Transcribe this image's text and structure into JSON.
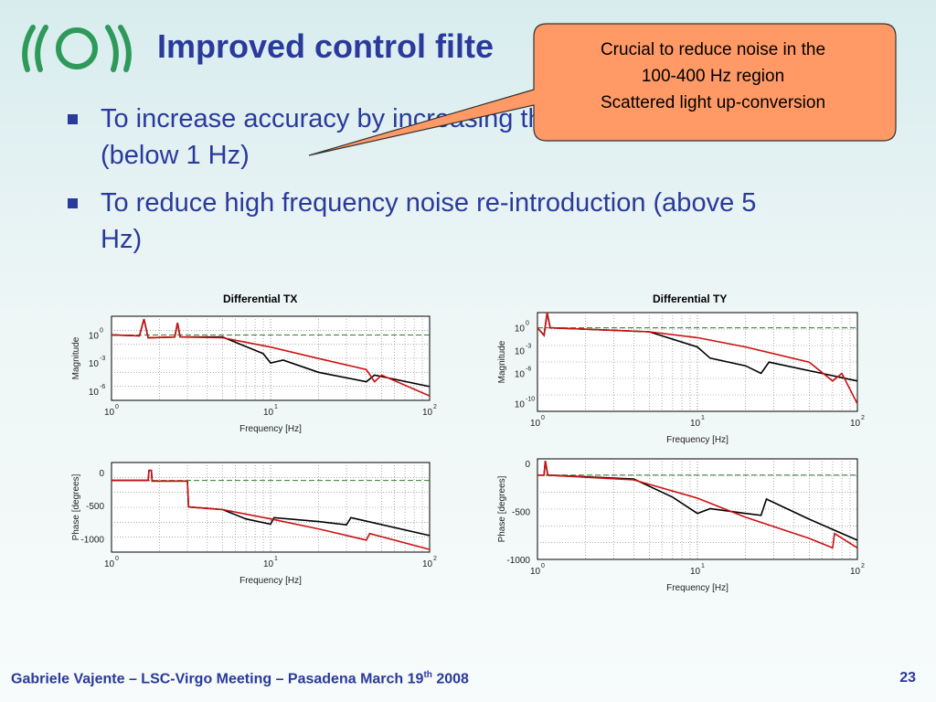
{
  "slide": {
    "title": "Improved control filte",
    "bullets": [
      {
        "line1": "To increase accuracy by increasing the gain at low frequencies",
        "line2": "(below 1 Hz)"
      },
      {
        "line1": "To reduce high frequency noise re-introduction (above 5",
        "line2": "Hz)"
      }
    ],
    "callout": [
      "Crucial to reduce noise in the",
      "100-400 Hz region",
      "Scattered light up-conversion"
    ],
    "footer": {
      "text": "Gabriele Vajente – LSC-Virgo Meeting – Pasadena March 19",
      "sup": "th",
      "year": " 2008"
    },
    "page_number": "23"
  },
  "colors": {
    "title": "#2a3a9c",
    "callout_fill": "#ff9966",
    "callout_border": "#333333",
    "old_filter": "#000000",
    "new_filter": "#cc1111",
    "reference_line": "#2e7d2e",
    "logo": "#2e9a5a"
  },
  "chart_data": [
    {
      "type": "line",
      "title": "Differential TX",
      "subplot": "magnitude",
      "xlabel": "Frequency [Hz]",
      "ylabel": "Magnitude",
      "xscale": "log",
      "yscale": "log",
      "xlim": [
        1,
        100
      ],
      "ylim": [
        1e-07,
        100
      ],
      "xticks": [
        "10^0",
        "10^1",
        "10^2"
      ],
      "yticks": [
        "10^0",
        "10^-3",
        "10^-6"
      ],
      "grid": true,
      "series": [
        {
          "color": "black",
          "points": [
            [
              1,
              1
            ],
            [
              1.5,
              0.8
            ],
            [
              1.6,
              50
            ],
            [
              1.7,
              0.5
            ],
            [
              2.5,
              0.6
            ],
            [
              2.6,
              20
            ],
            [
              2.7,
              0.6
            ],
            [
              5,
              0.6
            ],
            [
              9,
              0.01
            ],
            [
              10,
              0.001
            ],
            [
              12,
              0.002
            ],
            [
              20,
              0.0001
            ],
            [
              40,
              1e-05
            ],
            [
              45,
              5e-05
            ],
            [
              100,
              3e-06
            ]
          ]
        },
        {
          "color": "red",
          "points": [
            [
              1,
              1
            ],
            [
              1.5,
              0.8
            ],
            [
              1.6,
              50
            ],
            [
              1.7,
              0.5
            ],
            [
              2.5,
              0.6
            ],
            [
              2.6,
              20
            ],
            [
              2.7,
              0.6
            ],
            [
              5,
              0.5
            ],
            [
              10,
              0.05
            ],
            [
              20,
              0.003
            ],
            [
              40,
              0.0002
            ],
            [
              45,
              1e-05
            ],
            [
              50,
              5e-05
            ],
            [
              100,
              3e-07
            ]
          ]
        }
      ]
    },
    {
      "type": "line",
      "title": "Differential TY",
      "subplot": "magnitude",
      "xlabel": "Frequency [Hz]",
      "ylabel": "Magnitude",
      "xscale": "log",
      "yscale": "log",
      "xlim": [
        1,
        100
      ],
      "ylim": [
        1e-11,
        100
      ],
      "xticks": [
        "10^0",
        "10^1",
        "10^2"
      ],
      "yticks": [
        "10^0",
        "10^-3",
        "10^-6",
        "10^-10"
      ],
      "grid": true,
      "series": [
        {
          "color": "black",
          "points": [
            [
              1,
              1
            ],
            [
              1.1,
              0.1
            ],
            [
              1.15,
              100
            ],
            [
              1.2,
              1
            ],
            [
              5,
              0.3
            ],
            [
              10,
              0.003
            ],
            [
              12,
              0.0001
            ],
            [
              20,
              1e-05
            ],
            [
              25,
              1e-06
            ],
            [
              28,
              3e-05
            ],
            [
              60,
              1e-06
            ],
            [
              100,
              1e-07
            ]
          ]
        },
        {
          "color": "red",
          "points": [
            [
              1,
              1
            ],
            [
              1.1,
              0.1
            ],
            [
              1.15,
              100
            ],
            [
              1.2,
              1
            ],
            [
              5,
              0.3
            ],
            [
              10,
              0.05
            ],
            [
              20,
              0.003
            ],
            [
              50,
              3e-05
            ],
            [
              70,
              1e-07
            ],
            [
              80,
              1e-06
            ],
            [
              100,
              1e-10
            ]
          ]
        }
      ]
    },
    {
      "type": "line",
      "title": "",
      "subplot": "phase",
      "xlabel": "Frequency [Hz]",
      "ylabel": "Phase [degrees]",
      "xscale": "log",
      "xlim": [
        1,
        100
      ],
      "ylim": [
        -1200,
        150
      ],
      "xticks": [
        "10^0",
        "10^1",
        "10^2"
      ],
      "yticks": [
        "0",
        "-500",
        "-1000"
      ],
      "grid": true,
      "series": [
        {
          "color": "black",
          "points": [
            [
              1,
              -120
            ],
            [
              1.7,
              -120
            ],
            [
              1.72,
              30
            ],
            [
              1.78,
              30
            ],
            [
              1.8,
              -130
            ],
            [
              3,
              -130
            ],
            [
              3.05,
              -520
            ],
            [
              5,
              -560
            ],
            [
              7,
              -700
            ],
            [
              10,
              -780
            ],
            [
              10.5,
              -680
            ],
            [
              20,
              -740
            ],
            [
              30,
              -790
            ],
            [
              32,
              -680
            ],
            [
              100,
              -950
            ]
          ]
        },
        {
          "color": "red",
          "points": [
            [
              1,
              -120
            ],
            [
              1.7,
              -120
            ],
            [
              1.72,
              30
            ],
            [
              1.78,
              30
            ],
            [
              1.8,
              -130
            ],
            [
              3,
              -130
            ],
            [
              3.05,
              -520
            ],
            [
              5,
              -560
            ],
            [
              10,
              -700
            ],
            [
              20,
              -850
            ],
            [
              40,
              -1020
            ],
            [
              42,
              -920
            ],
            [
              100,
              -1160
            ]
          ]
        }
      ]
    },
    {
      "type": "line",
      "title": "",
      "subplot": "phase",
      "xlabel": "Frequency [Hz]",
      "ylabel": "Phase [degrees]",
      "xscale": "log",
      "xlim": [
        1,
        100
      ],
      "ylim": [
        -1000,
        50
      ],
      "xticks": [
        "10^0",
        "10^1",
        "10^2"
      ],
      "yticks": [
        "0",
        "-500",
        "-1000"
      ],
      "grid": true,
      "series": [
        {
          "color": "black",
          "points": [
            [
              1,
              -120
            ],
            [
              1.1,
              -120
            ],
            [
              1.12,
              30
            ],
            [
              1.16,
              -120
            ],
            [
              4,
              -160
            ],
            [
              7,
              -350
            ],
            [
              10,
              -520
            ],
            [
              12,
              -470
            ],
            [
              20,
              -520
            ],
            [
              25,
              -540
            ],
            [
              27,
              -370
            ],
            [
              50,
              -580
            ],
            [
              100,
              -800
            ]
          ]
        },
        {
          "color": "red",
          "points": [
            [
              1,
              -120
            ],
            [
              1.1,
              -120
            ],
            [
              1.12,
              30
            ],
            [
              1.16,
              -120
            ],
            [
              4,
              -170
            ],
            [
              10,
              -360
            ],
            [
              20,
              -560
            ],
            [
              50,
              -780
            ],
            [
              70,
              -880
            ],
            [
              72,
              -730
            ],
            [
              100,
              -880
            ]
          ]
        }
      ]
    }
  ]
}
